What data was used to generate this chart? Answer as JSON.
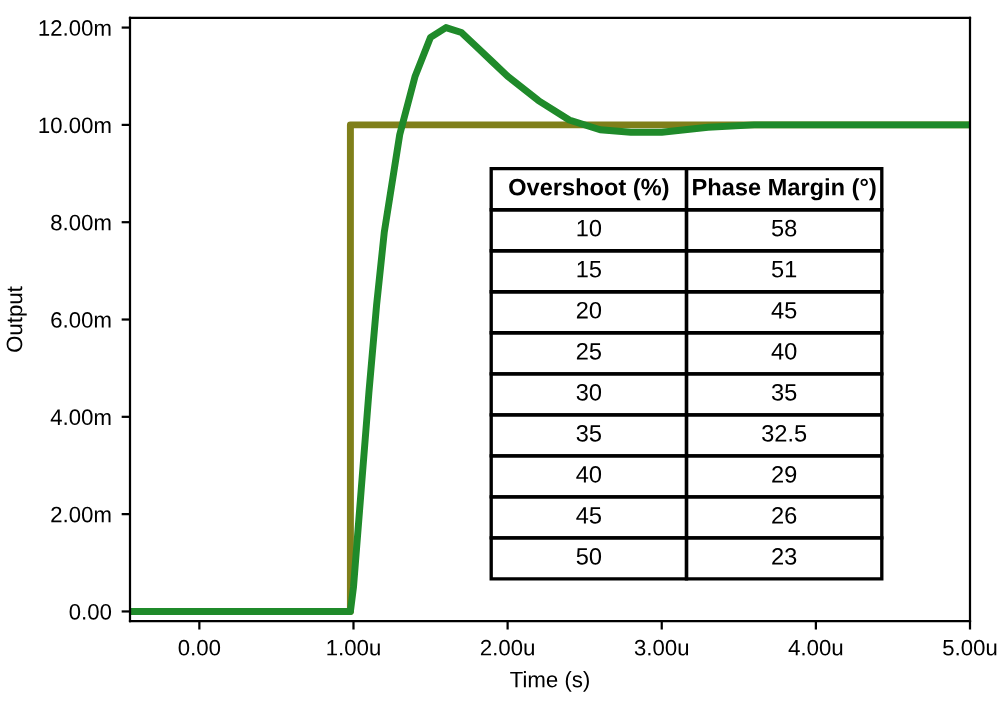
{
  "chart_data": {
    "type": "line",
    "xlabel": "Time (s)",
    "ylabel": "Output",
    "xlim": [
      -0.45,
      5
    ],
    "ylim": [
      -0.2,
      12.2
    ],
    "xticks": [
      {
        "value": 0,
        "label": "0.00"
      },
      {
        "value": 1,
        "label": "1.00u"
      },
      {
        "value": 2,
        "label": "2.00u"
      },
      {
        "value": 3,
        "label": "3.00u"
      },
      {
        "value": 4,
        "label": "4.00u"
      },
      {
        "value": 5,
        "label": "5.00u"
      }
    ],
    "yticks": [
      {
        "value": 0,
        "label": "0.00"
      },
      {
        "value": 2,
        "label": "2.00m"
      },
      {
        "value": 4,
        "label": "4.00m"
      },
      {
        "value": 6,
        "label": "6.00m"
      },
      {
        "value": 8,
        "label": "8.00m"
      },
      {
        "value": 10,
        "label": "10.00m"
      },
      {
        "value": 12,
        "label": "12.00m"
      }
    ],
    "grid": false,
    "legend": false,
    "marker": "none",
    "line_style": "solid",
    "series": [
      {
        "color": "#7f7f1a",
        "x": [
          -0.45,
          0.98,
          0.98,
          5
        ],
        "values": [
          0,
          0,
          10,
          10
        ]
      },
      {
        "color": "#1f8a2a",
        "x": [
          -0.45,
          0.98,
          1.0,
          1.05,
          1.1,
          1.15,
          1.2,
          1.3,
          1.4,
          1.5,
          1.6,
          1.7,
          1.8,
          1.9,
          2.0,
          2.2,
          2.4,
          2.6,
          2.8,
          3.0,
          3.3,
          3.6,
          5
        ],
        "values": [
          0,
          0,
          0.5,
          2.5,
          4.5,
          6.3,
          7.8,
          9.8,
          11.0,
          11.8,
          12.0,
          11.9,
          11.6,
          11.3,
          11.0,
          10.5,
          10.1,
          9.9,
          9.85,
          9.85,
          9.95,
          10,
          10
        ]
      }
    ],
    "annotations": [
      "Overshoot (%)",
      "Phase Margin (°)",
      "10",
      "58",
      "15",
      "51",
      "20",
      "45",
      "25",
      "40",
      "30",
      "35",
      "35",
      "32.5",
      "40",
      "29",
      "45",
      "26",
      "50",
      "23"
    ]
  }
}
